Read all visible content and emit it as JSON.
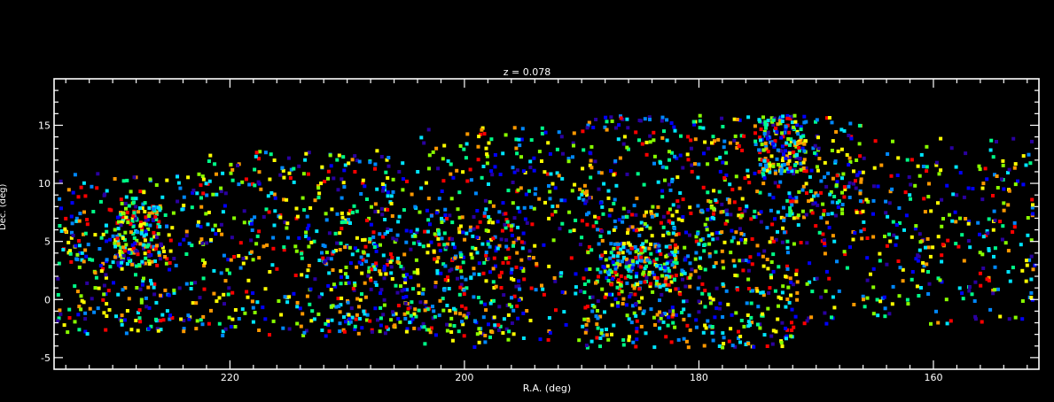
{
  "chart_data": {
    "type": "scatter",
    "title": "z = 0.078",
    "xlabel": "R.A. (deg)",
    "ylabel": "Dec. (deg)",
    "xlim": [
      235,
      151
    ],
    "ylim": [
      -6,
      19
    ],
    "x_ticks": [
      220,
      200,
      180,
      160
    ],
    "x_tick_labels": [
      "220",
      "200",
      "180",
      "160"
    ],
    "y_ticks": [
      -5,
      0,
      5,
      10,
      15
    ],
    "y_tick_labels": [
      "-5",
      "0",
      "5",
      "10",
      "15"
    ],
    "x_axis_reversed": true,
    "grid": false,
    "background": "#000000",
    "axis_color": "#ffffff",
    "marker": "square",
    "colormap": [
      "#2a00a0",
      "#0000ff",
      "#0088ff",
      "#00e5ff",
      "#00ff88",
      "#88ff00",
      "#ffff00",
      "#ff9900",
      "#ff0000"
    ],
    "density_regions": [
      {
        "ra": [
          235,
          222
        ],
        "dec": [
          -3,
          11
        ],
        "weight": 0.1
      },
      {
        "ra": [
          230,
          226
        ],
        "dec": [
          3,
          9
        ],
        "weight": 0.05
      },
      {
        "ra": [
          222,
          205
        ],
        "dec": [
          -3,
          13
        ],
        "weight": 0.12
      },
      {
        "ra": [
          212,
          195
        ],
        "dec": [
          -3,
          8
        ],
        "weight": 0.12
      },
      {
        "ra": [
          205,
          190
        ],
        "dec": [
          -4,
          15
        ],
        "weight": 0.1
      },
      {
        "ra": [
          190,
          172
        ],
        "dec": [
          -4,
          8
        ],
        "weight": 0.16
      },
      {
        "ra": [
          188,
          182
        ],
        "dec": [
          1,
          5
        ],
        "weight": 0.06
      },
      {
        "ra": [
          190,
          166
        ],
        "dec": [
          7,
          16
        ],
        "weight": 0.12
      },
      {
        "ra": [
          175,
          171
        ],
        "dec": [
          11,
          16
        ],
        "weight": 0.04
      },
      {
        "ra": [
          172,
          151
        ],
        "dec": [
          -2,
          14
        ],
        "weight": 0.13
      }
    ],
    "n_points": 3200
  }
}
